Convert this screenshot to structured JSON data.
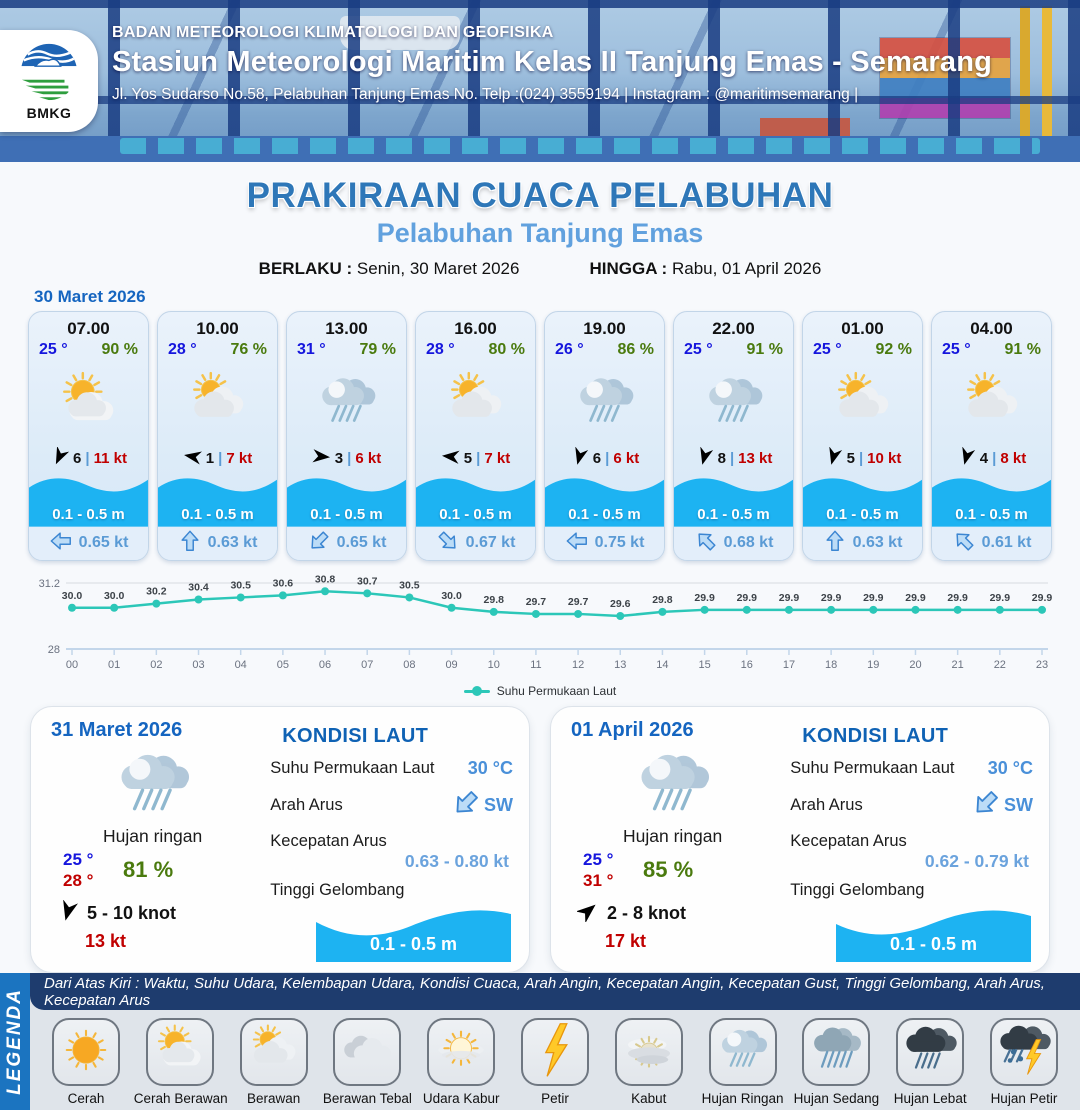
{
  "header": {
    "logo_text": "BMKG",
    "agency": "BADAN METEOROLOGI KLIMATOLOGI DAN GEOFISIKA",
    "station": "Stasiun Meteorologi Maritim Kelas II Tanjung Emas - Semarang",
    "address": "Jl. Yos Sudarso No.58, Pelabuhan Tanjung Emas No. Telp :(024) 3559194 | Instagram : @maritimsemarang |"
  },
  "title": {
    "main": "PRAKIRAAN CUACA PELABUHAN",
    "subtitle": "Pelabuhan Tanjung Emas",
    "berlaku_label": "BERLAKU :",
    "berlaku_value": "Senin, 30 Maret 2026",
    "hingga_label": "HINGGA :",
    "hingga_value": "Rabu, 01 April 2026",
    "forecast_date": "30 Maret 2026"
  },
  "cards_ui": {
    "divider": "|"
  },
  "cards": [
    {
      "time": "07.00",
      "temp": "25 °",
      "humidity": "90 %",
      "weather": "cerah-berawan",
      "wind_dir_deg": 115,
      "wind_avg": "6",
      "wind_gust": "11 kt",
      "wave": "0.1 - 0.5 m",
      "current_dir_deg": 180,
      "current": "0.65 kt"
    },
    {
      "time": "10.00",
      "temp": "28 °",
      "humidity": "76 %",
      "weather": "berawan",
      "wind_dir_deg": 190,
      "wind_avg": "1",
      "wind_gust": "7 kt",
      "wave": "0.1 - 0.5 m",
      "current_dir_deg": 270,
      "current": "0.63 kt"
    },
    {
      "time": "13.00",
      "temp": "31 °",
      "humidity": "79 %",
      "weather": "hujan-ringan",
      "wind_dir_deg": 5,
      "wind_avg": "3",
      "wind_gust": "6 kt",
      "wave": "0.1 - 0.5 m",
      "current_dir_deg": 135,
      "current": "0.65 kt"
    },
    {
      "time": "16.00",
      "temp": "28 °",
      "humidity": "80 %",
      "weather": "berawan",
      "wind_dir_deg": 185,
      "wind_avg": "5",
      "wind_gust": "7 kt",
      "wave": "0.1 - 0.5 m",
      "current_dir_deg": 45,
      "current": "0.67 kt"
    },
    {
      "time": "19.00",
      "temp": "26 °",
      "humidity": "86 %",
      "weather": "hujan-ringan",
      "wind_dir_deg": 105,
      "wind_avg": "6",
      "wind_gust": "6 kt",
      "wave": "0.1 - 0.5 m",
      "current_dir_deg": 180,
      "current": "0.75 kt"
    },
    {
      "time": "22.00",
      "temp": "25 °",
      "humidity": "91 %",
      "weather": "hujan-ringan",
      "wind_dir_deg": 105,
      "wind_avg": "8",
      "wind_gust": "13 kt",
      "wave": "0.1 - 0.5 m",
      "current_dir_deg": 225,
      "current": "0.68 kt"
    },
    {
      "time": "01.00",
      "temp": "25 °",
      "humidity": "92 %",
      "weather": "berawan",
      "wind_dir_deg": 105,
      "wind_avg": "5",
      "wind_gust": "10 kt",
      "wave": "0.1 - 0.5 m",
      "current_dir_deg": 270,
      "current": "0.63 kt"
    },
    {
      "time": "04.00",
      "temp": "25 °",
      "humidity": "91 %",
      "weather": "berawan",
      "wind_dir_deg": 105,
      "wind_avg": "4",
      "wind_gust": "8 kt",
      "wave": "0.1 - 0.5 m",
      "current_dir_deg": 225,
      "current": "0.61 kt"
    }
  ],
  "chart_data": {
    "type": "line",
    "x": [
      "00",
      "01",
      "02",
      "03",
      "04",
      "05",
      "06",
      "07",
      "08",
      "09",
      "10",
      "11",
      "12",
      "13",
      "14",
      "15",
      "16",
      "17",
      "18",
      "19",
      "20",
      "21",
      "22",
      "23"
    ],
    "series": [
      {
        "name": "Suhu Permukaan Laut",
        "values": [
          30.0,
          30.0,
          30.2,
          30.4,
          30.5,
          30.6,
          30.8,
          30.7,
          30.5,
          30.0,
          29.8,
          29.7,
          29.7,
          29.6,
          29.8,
          29.9,
          29.9,
          29.9,
          29.9,
          29.9,
          29.9,
          29.9,
          29.9,
          29.9
        ]
      }
    ],
    "ylim": [
      28,
      31.2
    ],
    "yticks": [
      "31.2",
      "28"
    ],
    "line_color": "#2cc7b8",
    "grid": "top-only",
    "legend_position": "bottom"
  },
  "panels": [
    {
      "date": "31 Maret 2026",
      "weather": "hujan-ringan",
      "weather_label": "Hujan ringan",
      "temp_min": "25 °",
      "temp_max": "28 °",
      "humidity": "81 %",
      "wind_dir_deg": 105,
      "wind_range": "5  - 10 knot",
      "gust": "13 kt",
      "sea": {
        "title": "KONDISI LAUT",
        "sst_label": "Suhu Permukaan Laut",
        "sst": "30 °C",
        "arah_label": "Arah Arus",
        "arah_dir_deg": 135,
        "arah": "SW",
        "kec_label": "Kecepatan Arus",
        "kec": "0.63 - 0.80 kt",
        "tinggi_label": "Tinggi Gelombang",
        "tinggi": "0.1 - 0.5 m"
      }
    },
    {
      "date": "01 April 2026",
      "weather": "hujan-ringan",
      "weather_label": "Hujan ringan",
      "temp_min": "25 °",
      "temp_max": "31 °",
      "humidity": "85 %",
      "wind_dir_deg": -40,
      "wind_range": "2  - 8 knot",
      "gust": "17 kt",
      "sea": {
        "title": "KONDISI LAUT",
        "sst_label": "Suhu Permukaan Laut",
        "sst": "30 °C",
        "arah_label": "Arah Arus",
        "arah_dir_deg": 135,
        "arah": "SW",
        "kec_label": "Kecepatan Arus",
        "kec": "0.62 - 0.79 kt",
        "tinggi_label": "Tinggi Gelombang",
        "tinggi": "0.1 - 0.5 m"
      }
    }
  ],
  "legend": {
    "side_label": "LEGENDA",
    "caption": "Dari Atas Kiri : Waktu, Suhu Udara, Kelembapan Udara, Kondisi Cuaca, Arah Angin, Kecepatan Angin, Kecepatan Gust, Tinggi Gelombang, Arah Arus, Kecepatan Arus",
    "items": [
      {
        "label": "Cerah",
        "icon": "cerah"
      },
      {
        "label": "Cerah Berawan",
        "icon": "cerah-berawan"
      },
      {
        "label": "Berawan",
        "icon": "berawan"
      },
      {
        "label": "Berawan Tebal",
        "icon": "berawan-tebal"
      },
      {
        "label": "Udara Kabur",
        "icon": "udara-kabur"
      },
      {
        "label": "Petir",
        "icon": "petir"
      },
      {
        "label": "Kabut",
        "icon": "kabut"
      },
      {
        "label": "Hujan Ringan",
        "icon": "hujan-ringan"
      },
      {
        "label": "Hujan Sedang",
        "icon": "hujan-sedang"
      },
      {
        "label": "Hujan Lebat",
        "icon": "hujan-lebat"
      },
      {
        "label": "Hujan Petir",
        "icon": "hujan-petir"
      }
    ]
  },
  "colors": {
    "accent_blue": "#1565c0",
    "light_blue": "#61a1de",
    "temp_blue": "#1515dd",
    "humidity_green": "#4a7a0e",
    "gust_red": "#c00000",
    "wave_cyan": "#1db3f2",
    "chart_teal": "#2cc7b8",
    "legend_navy": "#1e3c6e",
    "legend_bar_blue": "#1b74c0"
  }
}
